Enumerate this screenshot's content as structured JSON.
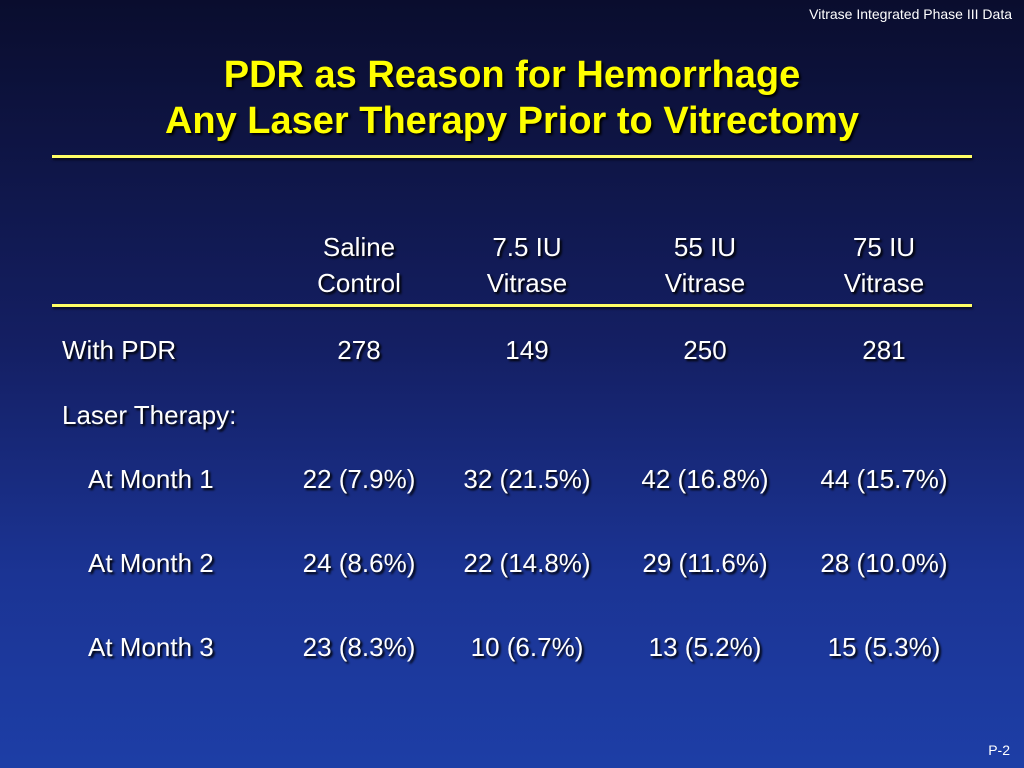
{
  "header_note": "Vitrase Integrated Phase III Data",
  "title": {
    "line1": "PDR as Reason for Hemorrhage",
    "line2": "Any Laser Therapy Prior to Vitrectomy"
  },
  "table": {
    "columns": [
      {
        "line1": "Saline",
        "line2": "Control"
      },
      {
        "line1": "7.5 IU",
        "line2": "Vitrase"
      },
      {
        "line1": "55 IU",
        "line2": "Vitrase"
      },
      {
        "line1": "75 IU",
        "line2": "Vitrase"
      }
    ],
    "with_pdr": {
      "label": "With PDR",
      "values": [
        "278",
        "149",
        "250",
        "281"
      ]
    },
    "laser_label": "Laser Therapy:",
    "months": [
      {
        "label": "At Month 1",
        "values": [
          "22 (7.9%)",
          "32 (21.5%)",
          "42 (16.8%)",
          "44 (15.7%)"
        ]
      },
      {
        "label": "At Month 2",
        "values": [
          "24 (8.6%)",
          "22 (14.8%)",
          "29 (11.6%)",
          "28 (10.0%)"
        ]
      },
      {
        "label": "At Month 3",
        "values": [
          "23 (8.3%)",
          "10 (6.7%)",
          "13 (5.2%)",
          "15 (5.3%)"
        ]
      }
    ]
  },
  "footer": "P-2",
  "colors": {
    "title": "#ffff00",
    "rule": "#ffff66",
    "background_top": "#0a0d2e",
    "background_bottom": "#1d3ea6"
  }
}
